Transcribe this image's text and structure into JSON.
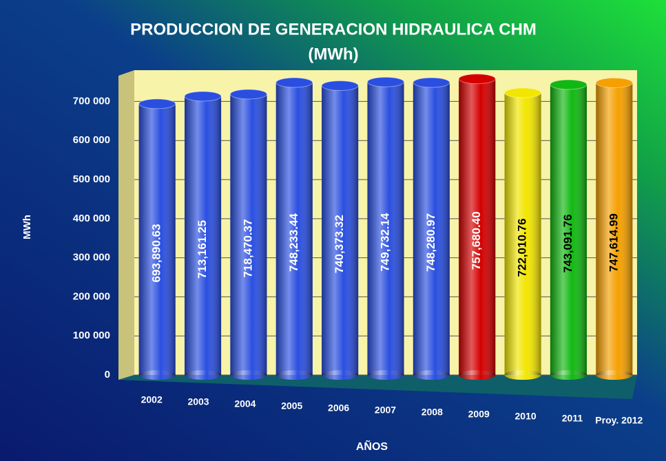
{
  "chart_data": {
    "type": "bar",
    "title": "PRODUCCION DE GENERACION HIDRAULICA CHM",
    "subtitle": "(MWh)",
    "y_label": "MWh",
    "x_label": "AÑOS",
    "categories": [
      "2002",
      "2003",
      "2004",
      "2005",
      "2006",
      "2007",
      "2008",
      "2009",
      "2010",
      "2011",
      "Proy. 2012"
    ],
    "values": [
      693890.63,
      713161.25,
      718470.37,
      748233.44,
      740373.32,
      749732.14,
      748280.97,
      757680.4,
      722010.76,
      743091.76,
      747614.99
    ],
    "value_labels": [
      "693,890.63",
      "713,161.25",
      "718,470.37",
      "748,233.44",
      "740,373.32",
      "749,732.14",
      "748,280.97",
      "757,680.40",
      "722,010.76",
      "743,091.76",
      "747,614.99"
    ],
    "colors": [
      "#2a4fe0",
      "#2a4fe0",
      "#2a4fe0",
      "#2a4fe0",
      "#2a4fe0",
      "#2a4fe0",
      "#2a4fe0",
      "#d40000",
      "#f2e600",
      "#12b812",
      "#f5a000"
    ],
    "label_colors": [
      "#ffffff",
      "#ffffff",
      "#ffffff",
      "#ffffff",
      "#ffffff",
      "#ffffff",
      "#ffffff",
      "#ffffff",
      "#000000",
      "#000000",
      "#000000"
    ],
    "ylim": [
      0,
      780000
    ],
    "yticks": [
      {
        "value": 0,
        "label": "0"
      },
      {
        "value": 100000,
        "label": "100 000"
      },
      {
        "value": 200000,
        "label": "200 000"
      },
      {
        "value": 300000,
        "label": "300 000"
      },
      {
        "value": 400000,
        "label": "400 000"
      },
      {
        "value": 500000,
        "label": "500 000"
      },
      {
        "value": 600000,
        "label": "600 000"
      },
      {
        "value": 700000,
        "label": "700 000"
      }
    ],
    "grid": true
  }
}
